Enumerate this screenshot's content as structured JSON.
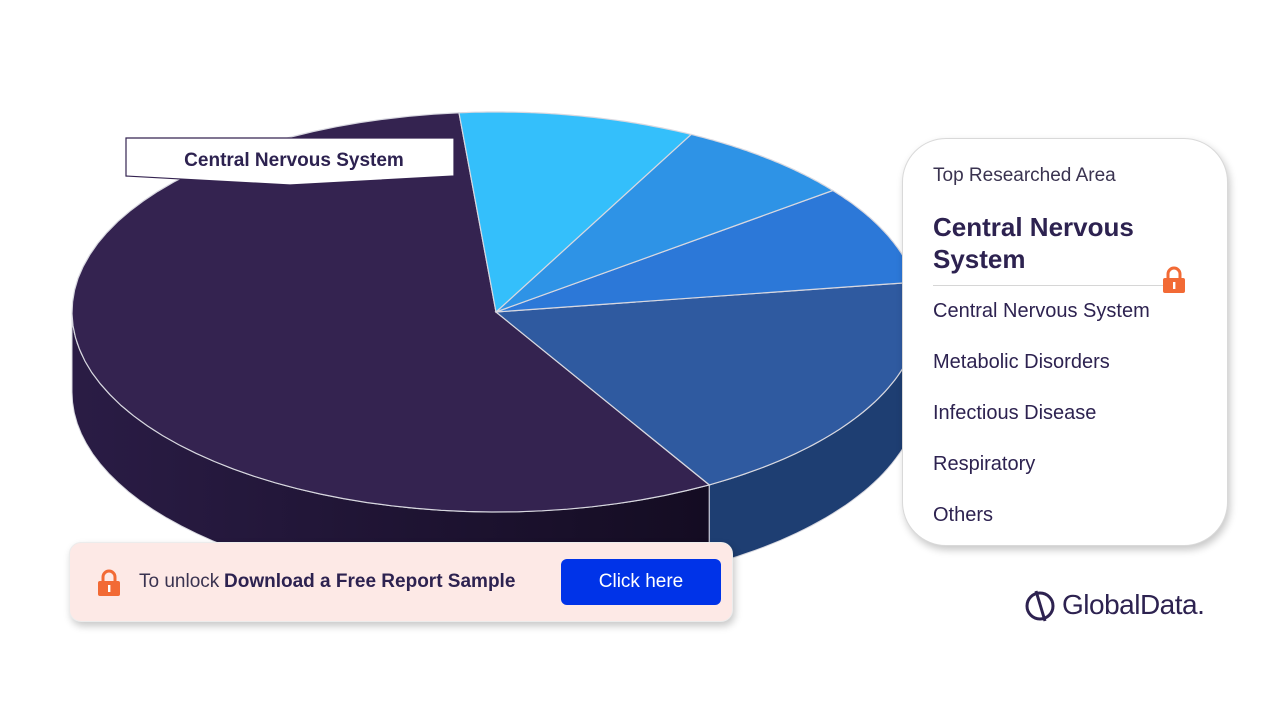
{
  "chart_data": {
    "type": "pie",
    "title": "",
    "slices": [
      {
        "label": "Central Nervous System",
        "value": 57,
        "color": "#342350",
        "side_color": "#26183d"
      },
      {
        "label": "",
        "value": 19,
        "color": "#2f5aa0",
        "side_color": "#1e3e72"
      },
      {
        "label": "",
        "value": 8,
        "color": "#2c78d8",
        "side_color": "#1b4e8c"
      },
      {
        "label": "",
        "value": 7,
        "color": "#2e93e6",
        "side_color": "#143a62"
      },
      {
        "label": "",
        "value": 9,
        "color": "#34bffb",
        "side_color": "#154c6a"
      }
    ],
    "callout_label": "Central Nervous System"
  },
  "legend": {
    "subtitle": "Top Researched Area",
    "top_area": "Central Nervous System",
    "items": [
      "Central Nervous System",
      "Metabolic Disorders",
      "Infectious Disease",
      "Respiratory",
      "Others"
    ]
  },
  "banner": {
    "prefix": "To unlock",
    "bold_text": "Download a Free Report Sample",
    "button_label": "Click here"
  },
  "brand": {
    "name": "GlobalData."
  },
  "colors": {
    "lock": "#f26a35",
    "button": "#0033e8",
    "text_dark": "#2d2250"
  }
}
